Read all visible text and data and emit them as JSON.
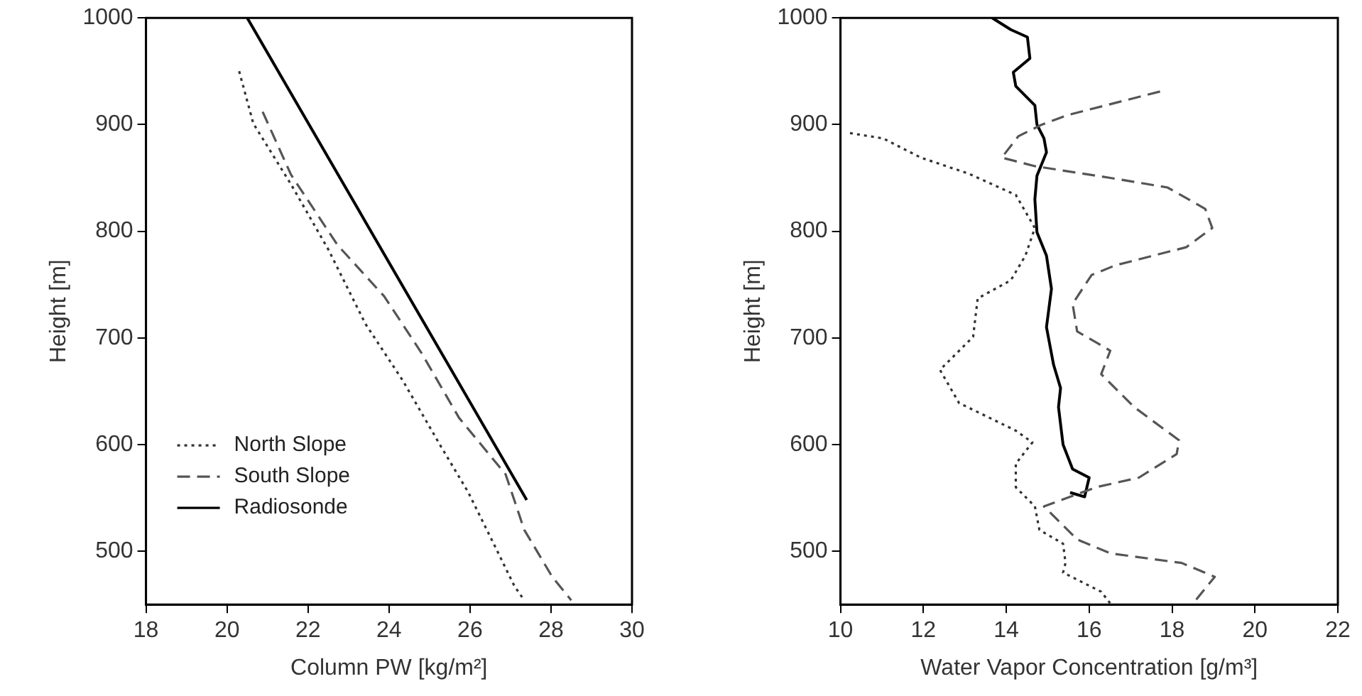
{
  "chart_data": [
    {
      "type": "line",
      "xlabel": "Column PW [kg/m²]",
      "ylabel": "Height [m]",
      "xlim": [
        18,
        30
      ],
      "ylim": [
        450,
        1000
      ],
      "xticks": [
        18,
        20,
        22,
        24,
        26,
        28,
        30
      ],
      "yticks": [
        500,
        600,
        700,
        800,
        900,
        1000
      ],
      "grid": false,
      "legend": "bottom left",
      "marker": "none",
      "series": [
        {
          "name": "North Slope",
          "color": "#333333",
          "line_style": "dotted",
          "x": [
            20.3,
            20.65,
            21.58,
            22.5,
            23.42,
            24.34,
            25.27,
            25.96,
            26.65,
            27.1,
            27.34
          ],
          "values": [
            950,
            901,
            844,
            783,
            713,
            660,
            599,
            555,
            502,
            467,
            454
          ]
        },
        {
          "name": "South Slope",
          "color": "#555555",
          "line_style": "dashed",
          "x": [
            20.88,
            21.58,
            22.73,
            23.88,
            24.8,
            25.73,
            26.88,
            27.34,
            28.03,
            28.5
          ],
          "values": [
            912,
            853,
            787,
            739,
            686,
            625,
            572,
            520,
            476,
            454
          ]
        },
        {
          "name": "Radiosonde",
          "color": "#000000",
          "line_style": "solid",
          "x": [
            20.5,
            27.4
          ],
          "values": [
            1000,
            548
          ]
        }
      ]
    },
    {
      "type": "line",
      "xlabel": "Water Vapor Concentration [g/m³]",
      "ylabel": "Height [m]",
      "xlim": [
        10,
        22
      ],
      "ylim": [
        450,
        1000
      ],
      "xticks": [
        10,
        12,
        14,
        16,
        18,
        20,
        22
      ],
      "yticks": [
        500,
        600,
        700,
        800,
        900,
        1000
      ],
      "grid": false,
      "legend": false,
      "marker": "none",
      "series": [
        {
          "color": "#333333",
          "line_style": "dotted",
          "x": [
            10.23,
            11.03,
            11.94,
            13.09,
            14.23,
            14.69,
            14.46,
            14.11,
            13.31,
            13.2,
            12.4,
            12.86,
            14.23,
            14.63,
            14.23,
            14.23,
            14.69,
            14.8,
            15.37,
            15.43,
            15.37,
            16.29,
            16.51
          ],
          "values": [
            892,
            887,
            869,
            854,
            834,
            803,
            777,
            754,
            737,
            701,
            670,
            639,
            613,
            602,
            582,
            560,
            542,
            520,
            507,
            489,
            480,
            462,
            451
          ]
        },
        {
          "color": "#555555",
          "line_style": "dashed",
          "x": [
            17.71,
            15.49,
            14.86,
            14.29,
            13.89,
            14.69,
            16.51,
            17.89,
            18.8,
            18.97,
            18.34,
            16.63,
            16.06,
            15.6,
            15.71,
            16.51,
            16.29,
            17.09,
            17.54,
            18.17,
            18.11,
            17.2,
            16.17,
            14.91,
            15.71,
            16.51,
            18.23,
            19.03,
            18.57
          ],
          "values": [
            931,
            909,
            900,
            889,
            869,
            861,
            850,
            841,
            821,
            803,
            785,
            768,
            759,
            732,
            706,
            688,
            666,
            635,
            622,
            604,
            591,
            569,
            560,
            542,
            511,
            498,
            489,
            476,
            454
          ]
        },
        {
          "color": "#000000",
          "line_style": "solid",
          "x": [
            13.66,
            14.11,
            14.51,
            14.57,
            14.17,
            14.23,
            14.69,
            14.74,
            14.91,
            14.97,
            14.74,
            14.69,
            14.74,
            14.97,
            15.09,
            14.97,
            15.14,
            15.31,
            15.26,
            15.37,
            15.6,
            16.0,
            15.89,
            15.54
          ],
          "values": [
            1000,
            989,
            982,
            962,
            949,
            936,
            918,
            900,
            887,
            874,
            852,
            830,
            799,
            777,
            746,
            710,
            675,
            653,
            635,
            600,
            577,
            569,
            551,
            555
          ]
        }
      ]
    }
  ]
}
